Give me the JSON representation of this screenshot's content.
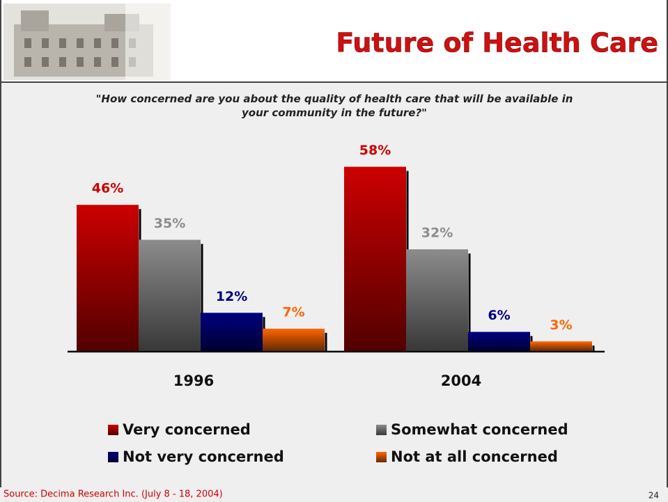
{
  "chart_data": {
    "type": "bar",
    "title": "Future of Health Care",
    "subtitle": "\"How concerned are you about the quality of health care that will be available in your community in the future?\"",
    "categories": [
      "1996",
      "2004"
    ],
    "series": [
      {
        "name": "Very concerned",
        "color": "#cc0000",
        "values": [
          46,
          58
        ],
        "value_labels": [
          "46%",
          "58%"
        ]
      },
      {
        "name": "Somewhat concerned",
        "color": "#8c8c8c",
        "values": [
          35,
          32
        ],
        "value_labels": [
          "35%",
          "32%"
        ]
      },
      {
        "name": "Not very concerned",
        "color": "#000080",
        "values": [
          12,
          6
        ],
        "value_labels": [
          "12%",
          "6%"
        ]
      },
      {
        "name": "Not at all concerned",
        "color": "#ff6600",
        "values": [
          7,
          3
        ],
        "value_labels": [
          "7%",
          "3%"
        ]
      }
    ],
    "source": "Source: Decima Research Inc. (July 8 - 18, 2004)",
    "page_number": "24"
  }
}
